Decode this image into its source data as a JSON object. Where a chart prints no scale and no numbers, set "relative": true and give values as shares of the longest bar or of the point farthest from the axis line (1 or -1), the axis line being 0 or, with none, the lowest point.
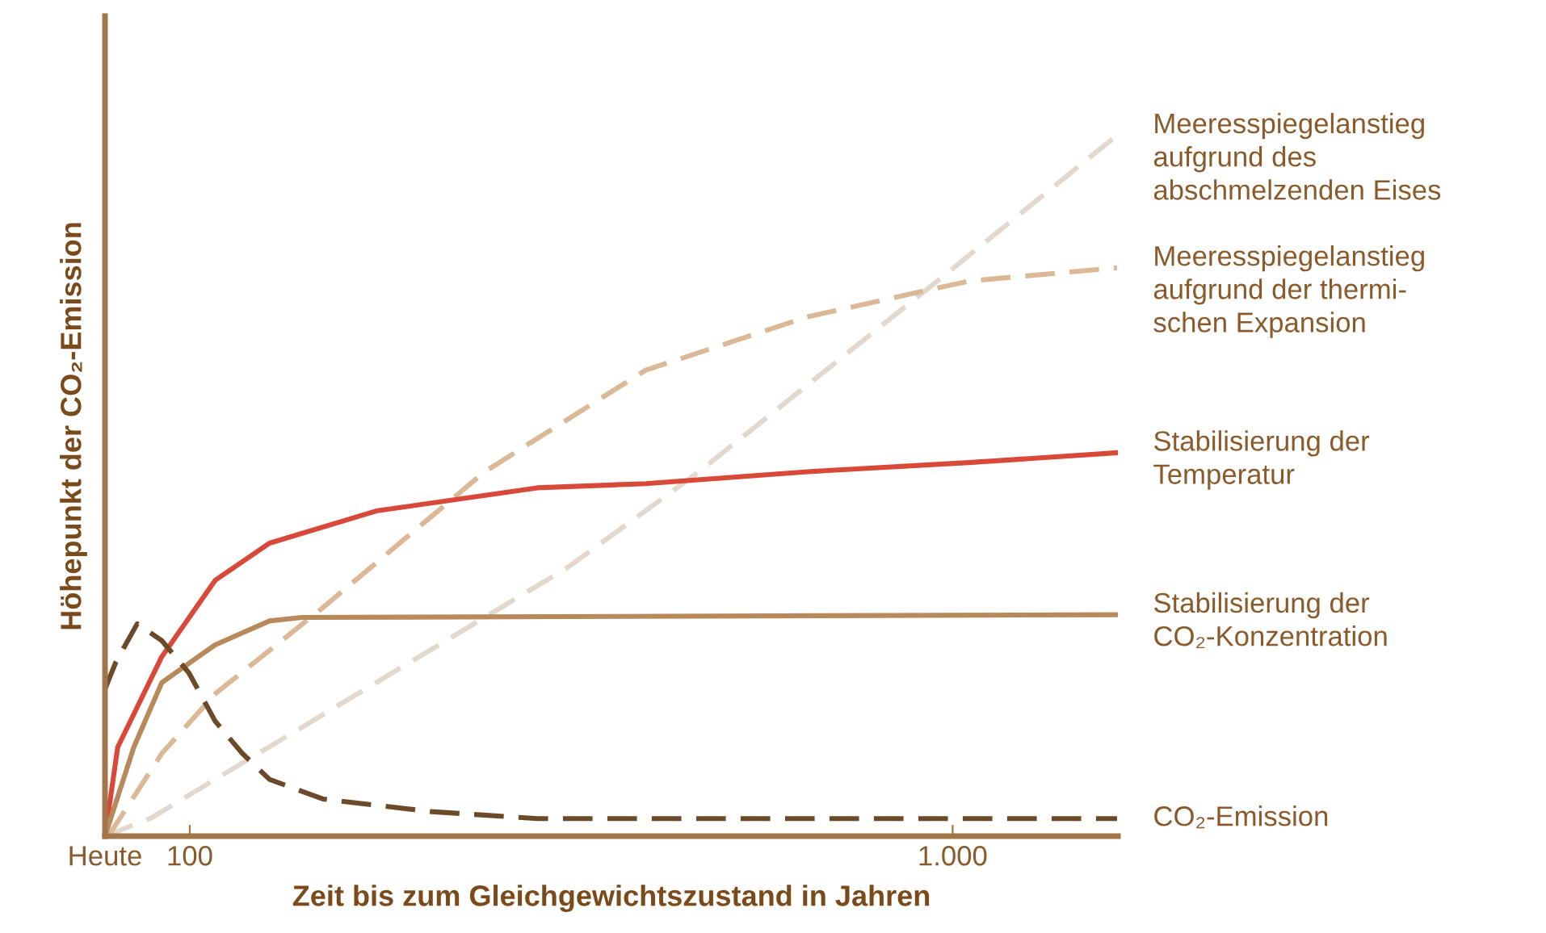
{
  "chart_data": {
    "type": "line",
    "relative": true,
    "ylabel": "Höhepunkt der CO₂-Emission",
    "xlabel": "Zeit bis zum Gleichgewichtszustand in Jahren",
    "xlim": [
      0,
      1195
    ],
    "xticks": [
      {
        "value": 0,
        "label": "Heute"
      },
      100,
      {
        "value": 1000,
        "label": "1.000"
      }
    ],
    "series": [
      {
        "name": "Meeresspiegelanstieg\naufgrund des\nabschmelzenden Eises",
        "color": "#e2d8cd",
        "line_style": "dashed",
        "x": [
          0,
          53,
          467,
          543,
          701,
          987,
          1194
        ],
        "values": [
          0,
          0.025,
          0.326,
          0.381,
          0.52,
          0.797,
          1.0
        ]
      },
      {
        "name": "Meeresspiegelanstieg\naufgrund der thermi-\nschen Expansion",
        "color": "#dcb996",
        "line_style": "dashed",
        "x": [
          4,
          67,
          130,
          257,
          448,
          638,
          829,
          1019,
          1194
        ],
        "values": [
          0,
          0.118,
          0.203,
          0.326,
          0.52,
          0.665,
          0.741,
          0.792,
          0.811
        ]
      },
      {
        "name": "Stabilisierung der\nTemperatur",
        "color": "#d9493a",
        "line_style": "solid",
        "x": [
          0,
          15,
          67,
          130,
          194,
          320,
          510,
          638,
          829,
          1019,
          1194
        ],
        "values": [
          0,
          0.127,
          0.256,
          0.365,
          0.418,
          0.464,
          0.497,
          0.503,
          0.52,
          0.533,
          0.547
        ]
      },
      {
        "name": "Stabilisierung der\nCO₂-Konzentration",
        "color": "#b8895a",
        "line_style": "solid",
        "x": [
          0,
          34,
          67,
          130,
          194,
          232,
          1194
        ],
        "values": [
          0,
          0.127,
          0.219,
          0.273,
          0.307,
          0.312,
          0.316
        ]
      },
      {
        "name": "CO₂-Emission",
        "color": "#6b4a2a",
        "line_style": "dashed",
        "x": [
          0,
          13,
          38,
          67,
          99,
          130,
          162,
          194,
          257,
          385,
          510,
          1194
        ],
        "values": [
          0.21,
          0.249,
          0.303,
          0.279,
          0.233,
          0.164,
          0.118,
          0.081,
          0.053,
          0.035,
          0.025,
          0.025
        ]
      }
    ]
  }
}
